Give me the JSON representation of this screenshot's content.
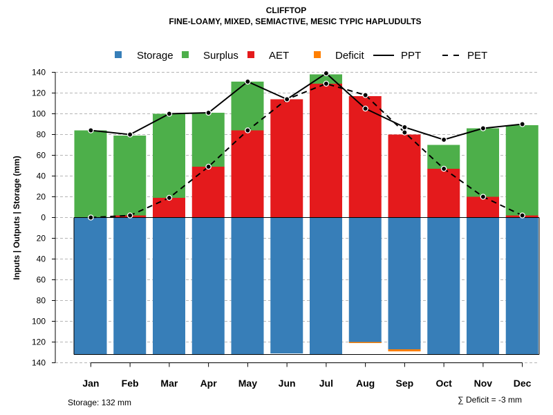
{
  "chart_data": {
    "type": "bar",
    "title": "CLIFFTOP",
    "subtitle": "FINE-LOAMY, MIXED, SEMIACTIVE, MESIC TYPIC HAPLUDULTS",
    "ylabel": "Inputs | Outputs | Storage    (mm)",
    "ylim": [
      -140,
      140
    ],
    "yticks": [
      140,
      120,
      100,
      80,
      60,
      40,
      20,
      0,
      20,
      40,
      60,
      80,
      100,
      120,
      140
    ],
    "categories": [
      "Jan",
      "Feb",
      "Mar",
      "Apr",
      "May",
      "Jun",
      "Jul",
      "Aug",
      "Sep",
      "Oct",
      "Nov",
      "Dec"
    ],
    "series": [
      {
        "name": "Storage",
        "color": "#377EB8",
        "values": [
          132,
          132,
          132,
          132,
          132,
          131,
          132,
          120,
          127,
          132,
          132,
          132
        ]
      },
      {
        "name": "Surplus",
        "color": "#4DAF4A",
        "values": [
          84,
          77,
          81,
          52,
          47,
          0,
          9,
          0,
          0,
          23,
          66,
          87
        ]
      },
      {
        "name": "AET",
        "color": "#E41A1C",
        "values": [
          0,
          2,
          19,
          49,
          84,
          114,
          129,
          117,
          80,
          47,
          20,
          2
        ]
      },
      {
        "name": "Deficit",
        "color": "#FF7F00",
        "values": [
          0,
          0,
          0,
          0,
          0,
          0,
          0,
          1,
          2,
          0,
          0,
          0
        ]
      },
      {
        "name": "PPT",
        "color": "#000000",
        "line": "solid",
        "values": [
          84,
          80,
          100,
          101,
          131,
          114,
          139,
          105,
          87,
          75,
          86,
          90
        ]
      },
      {
        "name": "PET",
        "color": "#000000",
        "line": "dashed",
        "values": [
          0,
          2,
          19,
          49,
          84,
          114,
          129,
          118,
          82,
          47,
          20,
          2
        ]
      }
    ],
    "legend_position": "top",
    "grid": true,
    "storage_capacity": 132,
    "footer_left": "Storage: 132 mm",
    "footer_right": "∑ Deficit = -3 mm"
  }
}
